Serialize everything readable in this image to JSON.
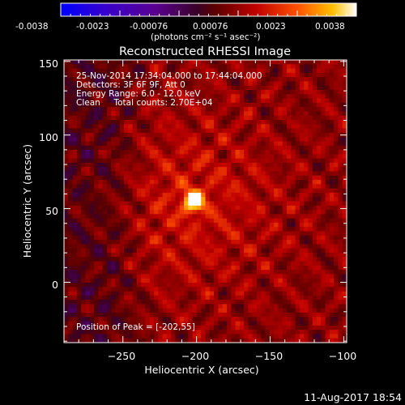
{
  "colorbar": {
    "tick_labels": [
      "-0.0038",
      "-0.0023",
      "-0.00076",
      "0.00076",
      "0.0023",
      "0.0038"
    ],
    "unit_label": "(photons cm⁻² s⁻¹ asec⁻²)",
    "range": [
      -0.0038,
      0.0038
    ]
  },
  "image": {
    "title": "Reconstructed RHESSI Image",
    "info_lines": [
      "25-Nov-2014 17:34:04.000 to 17:44:04.000",
      "Detectors: 3F 6F 9F, Att 0",
      "Energy Range: 6.0 - 12.0 keV",
      "Clean     Total counts: 2.70E+04"
    ],
    "peak_label": "Position of Peak = [-202,55]",
    "peak_position": [
      -202,
      55
    ]
  },
  "axes": {
    "xlabel": "Heliocentric X (arcsec)",
    "ylabel": "Heliocentric Y (arcsec)",
    "xlim": [
      -290,
      -98
    ],
    "ylim": [
      -41,
      151
    ],
    "x_ticks": [
      -250,
      -200,
      -150,
      -100
    ],
    "x_tick_labels": [
      "−250",
      "−200",
      "−150",
      "−100"
    ],
    "y_ticks": [
      0,
      50,
      100,
      150
    ],
    "y_tick_labels": [
      "0",
      "50",
      "100",
      "150"
    ]
  },
  "timestamp": "11-Aug-2017 18:54"
}
